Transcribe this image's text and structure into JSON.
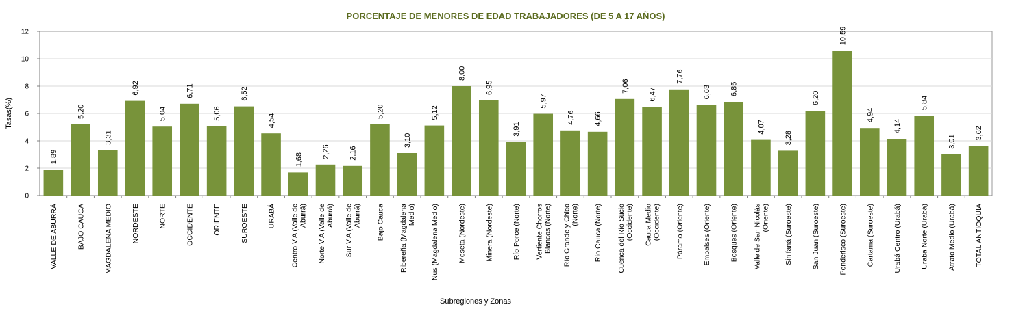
{
  "chart_data": {
    "type": "bar",
    "title": "PORCENTAJE DE MENORES DE EDAD TRABAJADORES (DE 5 A 17 AÑOS)",
    "xlabel": "Subregiones y Zonas",
    "ylabel": "Tasas(%)",
    "ylim": [
      0,
      12
    ],
    "yticks": [
      "0",
      "2",
      "4",
      "6",
      "8",
      "10",
      "12"
    ],
    "grid": true,
    "bar_color": "#78933a",
    "categories": [
      [
        "VALLE DE ABURRÁ"
      ],
      [
        "BAJO CAUCA"
      ],
      [
        "MAGDALENA MEDIO"
      ],
      [
        "NORDESTE"
      ],
      [
        "NORTE"
      ],
      [
        "OCCIDENTE"
      ],
      [
        "ORIENTE"
      ],
      [
        "SUROESTE"
      ],
      [
        "URABÁ"
      ],
      [
        "Centro V.A (Valle de",
        "Aburrá)"
      ],
      [
        "Norte V.A (Valle de",
        "Aburrá)"
      ],
      [
        "Sur  V.A (Valle de",
        "Aburrá)"
      ],
      [
        "Bajo Cauca"
      ],
      [
        "Ribereña  (Magdalena",
        "Medio)"
      ],
      [
        "Nus  (Magdalena Medio)"
      ],
      [
        "Meseta  (Nordeste)"
      ],
      [
        "Minera  (Nordeste)"
      ],
      [
        "Río Porce   (Norte)"
      ],
      [
        "Vertiente Chorros",
        "Blancos (Norte)"
      ],
      [
        "Río Grande y Chico",
        "(Norte)"
      ],
      [
        "Río Cauca  (Norte)"
      ],
      [
        "Cuenca del Río Sucio",
        "(Occidente)"
      ],
      [
        "Cauca Medio",
        "(Occidente)"
      ],
      [
        "Páramo  (Oriente)"
      ],
      [
        "Embalses  (Oriente)"
      ],
      [
        "Bosques  (Oriente)"
      ],
      [
        "Valle de San Nicolás",
        "(Oriente)"
      ],
      [
        "Sinifaná  (Suroeste)"
      ],
      [
        "San Juan  (Suroeste)"
      ],
      [
        "Penderisco  (Suroeste)"
      ],
      [
        "Cartama  (Suroeste)"
      ],
      [
        "Urabá Centro  (Urabá)"
      ],
      [
        "Urabá Norte  (Urabá)"
      ],
      [
        "Atrato Medio  (Urabá)"
      ],
      [
        "TOTAL ANTIOQUIA"
      ]
    ],
    "values": [
      1.89,
      5.2,
      3.31,
      6.92,
      5.04,
      6.71,
      5.06,
      6.52,
      4.54,
      1.68,
      2.26,
      2.16,
      5.2,
      3.1,
      5.12,
      8.0,
      6.95,
      3.91,
      5.97,
      4.76,
      4.66,
      7.06,
      6.47,
      7.76,
      6.63,
      6.85,
      4.07,
      3.28,
      6.2,
      10.59,
      4.94,
      4.14,
      5.84,
      3.01,
      3.62
    ],
    "value_labels": [
      "1,89",
      "5,20",
      "3,31",
      "6,92",
      "5,04",
      "6,71",
      "5,06",
      "6,52",
      "4,54",
      "1,68",
      "2,26",
      "2,16",
      "5,20",
      "3,10",
      "5,12",
      "8,00",
      "6,95",
      "3,91",
      "5,97",
      "4,76",
      "4,66",
      "7,06",
      "6,47",
      "7,76",
      "6,63",
      "6,85",
      "4,07",
      "3,28",
      "6,20",
      "10,59",
      "4,94",
      "4,14",
      "5,84",
      "3,01",
      "3,62"
    ]
  }
}
